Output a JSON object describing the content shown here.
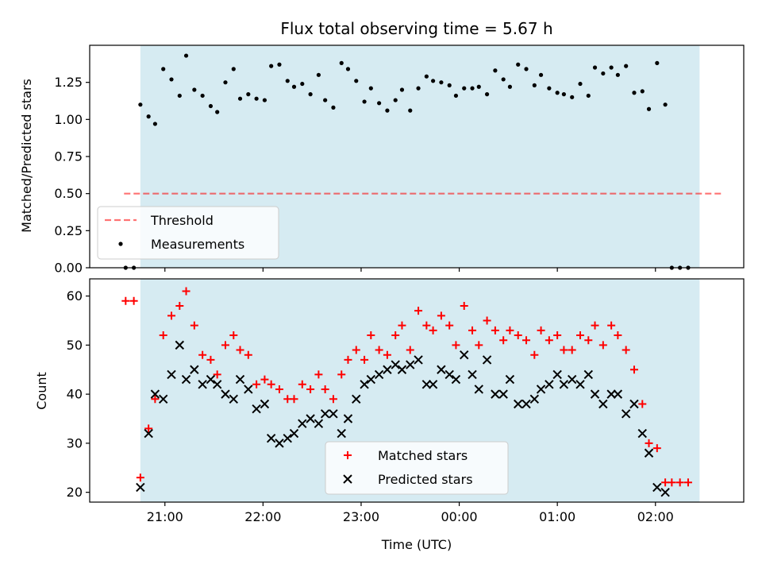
{
  "colors": {
    "background": "#ffffff",
    "observing_band": "#add8e6",
    "threshold": "#ff0000",
    "measurements": "#000000",
    "matched": "#ff0000",
    "predicted": "#000000"
  },
  "chart_data": [
    {
      "type": "scatter",
      "title": "Flux total observing time = 5.67 h",
      "xlabel": "",
      "ylabel": "Matched/Predicted stars",
      "xlim": [
        "20:14",
        "02:54"
      ],
      "ylim": [
        0,
        1.5
      ],
      "x_ticks": [
        "21:00",
        "22:00",
        "23:00",
        "00:00",
        "01:00",
        "02:00"
      ],
      "x_tick_labels_shown": false,
      "y_ticks": [
        "0.00",
        "0.25",
        "0.50",
        "0.75",
        "1.00",
        "1.25"
      ],
      "observing_band": [
        "20:45",
        "02:27"
      ],
      "legend": {
        "position": "lower-left",
        "entries": [
          "Threshold",
          "Measurements"
        ]
      },
      "threshold": {
        "name": "Threshold",
        "value": 0.5,
        "x_range": [
          "20:35",
          "02:41"
        ],
        "style": "dashed"
      },
      "series": [
        {
          "name": "Measurements",
          "marker": "dot",
          "points": [
            [
              "20:36",
              0.0
            ],
            [
              "20:41",
              0.0
            ],
            [
              "20:45",
              1.1
            ],
            [
              "20:50",
              1.02
            ],
            [
              "20:54",
              0.97
            ],
            [
              "20:59",
              1.34
            ],
            [
              "21:04",
              1.27
            ],
            [
              "21:09",
              1.16
            ],
            [
              "21:13",
              1.43
            ],
            [
              "21:18",
              1.2
            ],
            [
              "21:23",
              1.16
            ],
            [
              "21:28",
              1.09
            ],
            [
              "21:32",
              1.05
            ],
            [
              "21:37",
              1.25
            ],
            [
              "21:42",
              1.34
            ],
            [
              "21:46",
              1.14
            ],
            [
              "21:51",
              1.17
            ],
            [
              "21:56",
              1.14
            ],
            [
              "22:01",
              1.13
            ],
            [
              "22:05",
              1.36
            ],
            [
              "22:10",
              1.37
            ],
            [
              "22:15",
              1.26
            ],
            [
              "22:19",
              1.22
            ],
            [
              "22:24",
              1.24
            ],
            [
              "22:29",
              1.17
            ],
            [
              "22:34",
              1.3
            ],
            [
              "22:38",
              1.13
            ],
            [
              "22:43",
              1.08
            ],
            [
              "22:48",
              1.38
            ],
            [
              "22:52",
              1.34
            ],
            [
              "22:57",
              1.26
            ],
            [
              "23:02",
              1.12
            ],
            [
              "23:06",
              1.21
            ],
            [
              "23:11",
              1.11
            ],
            [
              "23:16",
              1.06
            ],
            [
              "23:21",
              1.13
            ],
            [
              "23:25",
              1.2
            ],
            [
              "23:30",
              1.06
            ],
            [
              "23:35",
              1.21
            ],
            [
              "23:40",
              1.29
            ],
            [
              "23:44",
              1.26
            ],
            [
              "23:49",
              1.25
            ],
            [
              "23:54",
              1.23
            ],
            [
              "23:58",
              1.16
            ],
            [
              "00:03",
              1.21
            ],
            [
              "00:08",
              1.21
            ],
            [
              "00:12",
              1.22
            ],
            [
              "00:17",
              1.17
            ],
            [
              "00:22",
              1.33
            ],
            [
              "00:27",
              1.27
            ],
            [
              "00:31",
              1.22
            ],
            [
              "00:36",
              1.37
            ],
            [
              "00:41",
              1.34
            ],
            [
              "00:46",
              1.23
            ],
            [
              "00:50",
              1.3
            ],
            [
              "00:55",
              1.21
            ],
            [
              "01:00",
              1.18
            ],
            [
              "01:04",
              1.17
            ],
            [
              "01:09",
              1.15
            ],
            [
              "01:14",
              1.24
            ],
            [
              "01:19",
              1.16
            ],
            [
              "01:23",
              1.35
            ],
            [
              "01:28",
              1.31
            ],
            [
              "01:33",
              1.35
            ],
            [
              "01:37",
              1.3
            ],
            [
              "01:42",
              1.36
            ],
            [
              "01:47",
              1.18
            ],
            [
              "01:52",
              1.19
            ],
            [
              "01:56",
              1.07
            ],
            [
              "02:01",
              1.38
            ],
            [
              "02:06",
              1.1
            ],
            [
              "02:10",
              0.0
            ],
            [
              "02:15",
              0.0
            ],
            [
              "02:20",
              0.0
            ]
          ]
        }
      ]
    },
    {
      "type": "scatter",
      "title": "",
      "xlabel": "Time (UTC)",
      "ylabel": "Count",
      "xlim": [
        "20:14",
        "02:54"
      ],
      "ylim": [
        18,
        63.5
      ],
      "x_ticks": [
        "21:00",
        "22:00",
        "23:00",
        "00:00",
        "01:00",
        "02:00"
      ],
      "y_ticks": [
        "20",
        "30",
        "40",
        "50",
        "60"
      ],
      "observing_band": [
        "20:45",
        "02:27"
      ],
      "legend": {
        "position": "lower-center",
        "entries": [
          "Matched stars",
          "Predicted stars"
        ]
      },
      "series": [
        {
          "name": "Matched stars",
          "marker": "plus",
          "points": [
            [
              "20:36",
              59
            ],
            [
              "20:41",
              59
            ],
            [
              "20:45",
              23
            ],
            [
              "20:50",
              33
            ],
            [
              "20:54",
              39
            ],
            [
              "20:59",
              52
            ],
            [
              "21:04",
              56
            ],
            [
              "21:09",
              58
            ],
            [
              "21:13",
              61
            ],
            [
              "21:18",
              54
            ],
            [
              "21:23",
              48
            ],
            [
              "21:28",
              47
            ],
            [
              "21:32",
              44
            ],
            [
              "21:37",
              50
            ],
            [
              "21:42",
              52
            ],
            [
              "21:46",
              49
            ],
            [
              "21:51",
              48
            ],
            [
              "21:56",
              42
            ],
            [
              "22:01",
              43
            ],
            [
              "22:05",
              42
            ],
            [
              "22:10",
              41
            ],
            [
              "22:15",
              39
            ],
            [
              "22:19",
              39
            ],
            [
              "22:24",
              42
            ],
            [
              "22:29",
              41
            ],
            [
              "22:34",
              44
            ],
            [
              "22:38",
              41
            ],
            [
              "22:43",
              39
            ],
            [
              "22:48",
              44
            ],
            [
              "22:52",
              47
            ],
            [
              "22:57",
              49
            ],
            [
              "23:02",
              47
            ],
            [
              "23:06",
              52
            ],
            [
              "23:11",
              49
            ],
            [
              "23:16",
              48
            ],
            [
              "23:21",
              52
            ],
            [
              "23:25",
              54
            ],
            [
              "23:30",
              49
            ],
            [
              "23:35",
              57
            ],
            [
              "23:40",
              54
            ],
            [
              "23:44",
              53
            ],
            [
              "23:49",
              56
            ],
            [
              "23:54",
              54
            ],
            [
              "23:58",
              50
            ],
            [
              "00:03",
              58
            ],
            [
              "00:08",
              53
            ],
            [
              "00:12",
              50
            ],
            [
              "00:17",
              55
            ],
            [
              "00:22",
              53
            ],
            [
              "00:27",
              51
            ],
            [
              "00:31",
              53
            ],
            [
              "00:36",
              52
            ],
            [
              "00:41",
              51
            ],
            [
              "00:46",
              48
            ],
            [
              "00:50",
              53
            ],
            [
              "00:55",
              51
            ],
            [
              "01:00",
              52
            ],
            [
              "01:04",
              49
            ],
            [
              "01:09",
              49
            ],
            [
              "01:14",
              52
            ],
            [
              "01:19",
              51
            ],
            [
              "01:23",
              54
            ],
            [
              "01:28",
              50
            ],
            [
              "01:33",
              54
            ],
            [
              "01:37",
              52
            ],
            [
              "01:42",
              49
            ],
            [
              "01:47",
              45
            ],
            [
              "01:52",
              38
            ],
            [
              "01:56",
              30
            ],
            [
              "02:01",
              29
            ],
            [
              "02:06",
              22
            ],
            [
              "02:10",
              22
            ],
            [
              "02:15",
              22
            ],
            [
              "02:20",
              22
            ]
          ]
        },
        {
          "name": "Predicted stars",
          "marker": "x",
          "points": [
            [
              "20:45",
              21
            ],
            [
              "20:50",
              32
            ],
            [
              "20:54",
              40
            ],
            [
              "20:59",
              39
            ],
            [
              "21:04",
              44
            ],
            [
              "21:09",
              50
            ],
            [
              "21:13",
              43
            ],
            [
              "21:18",
              45
            ],
            [
              "21:23",
              42
            ],
            [
              "21:28",
              43
            ],
            [
              "21:32",
              42
            ],
            [
              "21:37",
              40
            ],
            [
              "21:42",
              39
            ],
            [
              "21:46",
              43
            ],
            [
              "21:51",
              41
            ],
            [
              "21:56",
              37
            ],
            [
              "22:01",
              38
            ],
            [
              "22:05",
              31
            ],
            [
              "22:10",
              30
            ],
            [
              "22:15",
              31
            ],
            [
              "22:19",
              32
            ],
            [
              "22:24",
              34
            ],
            [
              "22:29",
              35
            ],
            [
              "22:34",
              34
            ],
            [
              "22:38",
              36
            ],
            [
              "22:43",
              36
            ],
            [
              "22:48",
              32
            ],
            [
              "22:52",
              35
            ],
            [
              "22:57",
              39
            ],
            [
              "23:02",
              42
            ],
            [
              "23:06",
              43
            ],
            [
              "23:11",
              44
            ],
            [
              "23:16",
              45
            ],
            [
              "23:21",
              46
            ],
            [
              "23:25",
              45
            ],
            [
              "23:30",
              46
            ],
            [
              "23:35",
              47
            ],
            [
              "23:40",
              42
            ],
            [
              "23:44",
              42
            ],
            [
              "23:49",
              45
            ],
            [
              "23:54",
              44
            ],
            [
              "23:58",
              43
            ],
            [
              "00:03",
              48
            ],
            [
              "00:08",
              44
            ],
            [
              "00:12",
              41
            ],
            [
              "00:17",
              47
            ],
            [
              "00:22",
              40
            ],
            [
              "00:27",
              40
            ],
            [
              "00:31",
              43
            ],
            [
              "00:36",
              38
            ],
            [
              "00:41",
              38
            ],
            [
              "00:46",
              39
            ],
            [
              "00:50",
              41
            ],
            [
              "00:55",
              42
            ],
            [
              "01:00",
              44
            ],
            [
              "01:04",
              42
            ],
            [
              "01:09",
              43
            ],
            [
              "01:14",
              42
            ],
            [
              "01:19",
              44
            ],
            [
              "01:23",
              40
            ],
            [
              "01:28",
              38
            ],
            [
              "01:33",
              40
            ],
            [
              "01:37",
              40
            ],
            [
              "01:42",
              36
            ],
            [
              "01:47",
              38
            ],
            [
              "01:52",
              32
            ],
            [
              "01:56",
              28
            ],
            [
              "02:01",
              21
            ],
            [
              "02:06",
              20
            ]
          ]
        }
      ]
    }
  ]
}
